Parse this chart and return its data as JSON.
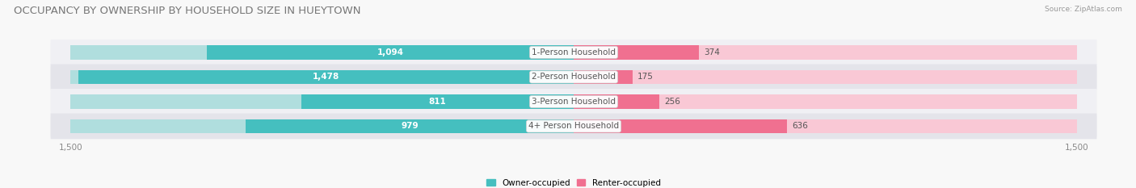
{
  "title": "OCCUPANCY BY OWNERSHIP BY HOUSEHOLD SIZE IN HUEYTOWN",
  "source": "Source: ZipAtlas.com",
  "categories": [
    "1-Person Household",
    "2-Person Household",
    "3-Person Household",
    "4+ Person Household"
  ],
  "owner_values": [
    1094,
    1478,
    811,
    979
  ],
  "renter_values": [
    374,
    175,
    256,
    636
  ],
  "owner_color": "#45BFBF",
  "renter_color": "#F07090",
  "owner_color_light": "#B0DEDE",
  "renter_color_light": "#F9C8D5",
  "row_bg_even": "#F0F0F4",
  "row_bg_odd": "#E4E4EA",
  "max_value": 1500,
  "legend_owner": "Owner-occupied",
  "legend_renter": "Renter-occupied",
  "title_fontsize": 9.5,
  "label_fontsize": 7.5,
  "axis_fontsize": 7.5,
  "bar_height": 0.58,
  "figsize": [
    14.06,
    2.33
  ],
  "dpi": 100
}
